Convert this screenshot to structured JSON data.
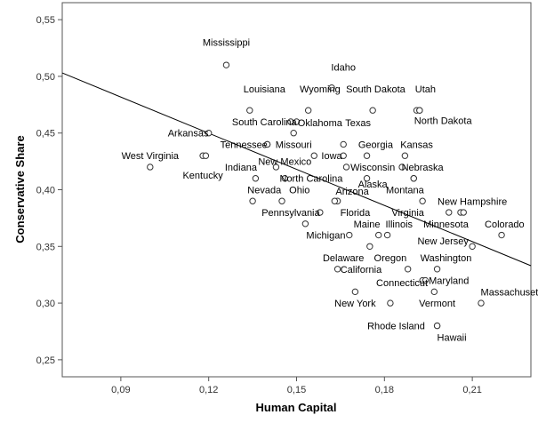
{
  "chart_data": {
    "type": "scatter",
    "xlabel": "Human Capital",
    "ylabel": "Conservative Share",
    "xlim": [
      0.07,
      0.23
    ],
    "ylim": [
      0.235,
      0.565
    ],
    "x_ticks": [
      "0,09",
      "0,12",
      "0,15",
      "0,18",
      "0,21"
    ],
    "x_tick_values": [
      0.09,
      0.12,
      0.15,
      0.18,
      0.21
    ],
    "y_ticks": [
      "0,25",
      "0,30",
      "0,35",
      "0,40",
      "0,45",
      "0,50",
      "0,55"
    ],
    "y_tick_values": [
      0.25,
      0.3,
      0.35,
      0.4,
      0.45,
      0.5,
      0.55
    ],
    "grid": false,
    "fit_line": {
      "x": [
        0.07,
        0.23
      ],
      "y": [
        0.503,
        0.333
      ]
    },
    "points": [
      {
        "label": "Mississippi",
        "x": 0.126,
        "y": 0.51,
        "lx": 0.126,
        "ly": 0.53,
        "anchor": "middle"
      },
      {
        "label": "Idaho",
        "x": 0.162,
        "y": 0.49,
        "lx": 0.166,
        "ly": 0.508,
        "anchor": "middle"
      },
      {
        "label": "Louisiana",
        "x": 0.134,
        "y": 0.47,
        "lx": 0.139,
        "ly": 0.489,
        "anchor": "middle"
      },
      {
        "label": "Wyoming",
        "x": 0.154,
        "y": 0.47,
        "lx": 0.158,
        "ly": 0.489,
        "anchor": "middle"
      },
      {
        "label": "South Dakota",
        "x": 0.176,
        "y": 0.47,
        "lx": 0.177,
        "ly": 0.489,
        "anchor": "middle"
      },
      {
        "label": "Utah",
        "x": 0.191,
        "y": 0.47,
        "lx": 0.194,
        "ly": 0.489,
        "anchor": "middle"
      },
      {
        "label": "Utah-2",
        "x": 0.192,
        "y": 0.47,
        "lx": null,
        "ly": null,
        "anchor": "middle"
      },
      {
        "label": "South Carolina",
        "x": 0.148,
        "y": 0.46,
        "lx": 0.139,
        "ly": 0.46,
        "anchor": "middle"
      },
      {
        "label": "Oklahoma",
        "x": 0.15,
        "y": 0.46,
        "lx": 0.158,
        "ly": 0.459,
        "anchor": "middle"
      },
      {
        "label": "North Dakota",
        "x": 0.192,
        "y": 0.47,
        "lx": 0.2,
        "ly": 0.461,
        "anchor": "middle"
      },
      {
        "label": "Texas",
        "x": 0.149,
        "y": 0.45,
        "lx": 0.171,
        "ly": 0.459,
        "anchor": "middle"
      },
      {
        "label": "Arkansas",
        "x": 0.12,
        "y": 0.45,
        "lx": 0.113,
        "ly": 0.45,
        "anchor": "middle"
      },
      {
        "label": "Tennessee",
        "x": 0.14,
        "y": 0.44,
        "lx": 0.132,
        "ly": 0.44,
        "anchor": "middle"
      },
      {
        "label": "Missouri",
        "x": 0.14,
        "y": 0.44,
        "lx": 0.149,
        "ly": 0.44,
        "anchor": "middle"
      },
      {
        "label": "Georgia",
        "x": 0.166,
        "y": 0.44,
        "lx": 0.177,
        "ly": 0.44,
        "anchor": "middle"
      },
      {
        "label": "Kansas",
        "x": 0.187,
        "y": 0.43,
        "lx": 0.191,
        "ly": 0.44,
        "anchor": "middle"
      },
      {
        "label": "West Virginia",
        "x": 0.1,
        "y": 0.42,
        "lx": 0.1,
        "ly": 0.43,
        "anchor": "middle"
      },
      {
        "label": "West Virginia-dot",
        "x": 0.118,
        "y": 0.43,
        "lx": null,
        "ly": null,
        "anchor": "middle"
      },
      {
        "label": "Iowa",
        "x": 0.156,
        "y": 0.43,
        "lx": 0.162,
        "ly": 0.43,
        "anchor": "middle"
      },
      {
        "label": "Iowa-2",
        "x": 0.166,
        "y": 0.43,
        "lx": null,
        "ly": null,
        "anchor": "middle"
      },
      {
        "label": "Iowa-3",
        "x": 0.174,
        "y": 0.43,
        "lx": null,
        "ly": null,
        "anchor": "middle"
      },
      {
        "label": "New Mexico",
        "x": 0.143,
        "y": 0.42,
        "lx": 0.146,
        "ly": 0.425,
        "anchor": "middle"
      },
      {
        "label": "Indiana",
        "x": 0.136,
        "y": 0.41,
        "lx": 0.131,
        "ly": 0.42,
        "anchor": "middle"
      },
      {
        "label": "Wisconsin",
        "x": 0.167,
        "y": 0.42,
        "lx": 0.176,
        "ly": 0.42,
        "anchor": "middle"
      },
      {
        "label": "Nebraska",
        "x": 0.186,
        "y": 0.42,
        "lx": 0.193,
        "ly": 0.42,
        "anchor": "middle"
      },
      {
        "label": "Kentucky",
        "x": 0.119,
        "y": 0.43,
        "lx": 0.118,
        "ly": 0.413,
        "anchor": "middle"
      },
      {
        "label": "North Carolina",
        "x": 0.146,
        "y": 0.41,
        "lx": 0.155,
        "ly": 0.41,
        "anchor": "middle"
      },
      {
        "label": "Alaska",
        "x": 0.174,
        "y": 0.41,
        "lx": 0.176,
        "ly": 0.405,
        "anchor": "middle"
      },
      {
        "label": "Alaska-2",
        "x": 0.19,
        "y": 0.41,
        "lx": null,
        "ly": null,
        "anchor": "middle"
      },
      {
        "label": "Nevada",
        "x": 0.135,
        "y": 0.39,
        "lx": 0.139,
        "ly": 0.4,
        "anchor": "middle"
      },
      {
        "label": "Ohio",
        "x": 0.145,
        "y": 0.39,
        "lx": 0.151,
        "ly": 0.4,
        "anchor": "middle"
      },
      {
        "label": "Arizona",
        "x": 0.164,
        "y": 0.39,
        "lx": 0.169,
        "ly": 0.399,
        "anchor": "middle"
      },
      {
        "label": "Montana",
        "x": 0.19,
        "y": 0.41,
        "lx": 0.187,
        "ly": 0.4,
        "anchor": "middle"
      },
      {
        "label": "New Hampshire",
        "x": 0.206,
        "y": 0.38,
        "lx": 0.21,
        "ly": 0.39,
        "anchor": "middle"
      },
      {
        "label": "New Hampshire-2",
        "x": 0.207,
        "y": 0.38,
        "lx": null,
        "ly": null,
        "anchor": "middle"
      },
      {
        "label": "Florida",
        "x": 0.163,
        "y": 0.39,
        "lx": 0.17,
        "ly": 0.38,
        "anchor": "middle"
      },
      {
        "label": "Virginia",
        "x": 0.193,
        "y": 0.39,
        "lx": 0.188,
        "ly": 0.38,
        "anchor": "middle"
      },
      {
        "label": "Pennsylvania",
        "x": 0.158,
        "y": 0.38,
        "lx": 0.148,
        "ly": 0.38,
        "anchor": "middle"
      },
      {
        "label": "Pennsylvania-2",
        "x": 0.153,
        "y": 0.37,
        "lx": null,
        "ly": null,
        "anchor": "middle"
      },
      {
        "label": "Minnesota",
        "x": 0.202,
        "y": 0.38,
        "lx": 0.201,
        "ly": 0.37,
        "anchor": "middle"
      },
      {
        "label": "Maine",
        "x": 0.178,
        "y": 0.36,
        "lx": 0.174,
        "ly": 0.37,
        "anchor": "middle"
      },
      {
        "label": "Illinois",
        "x": 0.181,
        "y": 0.36,
        "lx": 0.185,
        "ly": 0.37,
        "anchor": "middle"
      },
      {
        "label": "Colorado",
        "x": 0.22,
        "y": 0.36,
        "lx": 0.221,
        "ly": 0.37,
        "anchor": "middle"
      },
      {
        "label": "Michigan",
        "x": 0.168,
        "y": 0.36,
        "lx": 0.16,
        "ly": 0.36,
        "anchor": "middle"
      },
      {
        "label": "New Jersey",
        "x": 0.21,
        "y": 0.35,
        "lx": 0.2,
        "ly": 0.355,
        "anchor": "middle"
      },
      {
        "label": "Delaware",
        "x": 0.175,
        "y": 0.35,
        "lx": 0.166,
        "ly": 0.34,
        "anchor": "middle"
      },
      {
        "label": "Oregon",
        "x": 0.188,
        "y": 0.33,
        "lx": 0.182,
        "ly": 0.34,
        "anchor": "middle"
      },
      {
        "label": "Washington",
        "x": 0.198,
        "y": 0.33,
        "lx": 0.201,
        "ly": 0.34,
        "anchor": "middle"
      },
      {
        "label": "California",
        "x": 0.164,
        "y": 0.33,
        "lx": 0.172,
        "ly": 0.33,
        "anchor": "middle"
      },
      {
        "label": "Maryland",
        "x": 0.193,
        "y": 0.32,
        "lx": 0.202,
        "ly": 0.32,
        "anchor": "middle"
      },
      {
        "label": "Connecticut",
        "x": 0.194,
        "y": 0.32,
        "lx": 0.186,
        "ly": 0.318,
        "anchor": "middle"
      },
      {
        "label": "Massachusetts",
        "x": 0.213,
        "y": 0.3,
        "lx": 0.224,
        "ly": 0.31,
        "anchor": "middle"
      },
      {
        "label": "New York",
        "x": 0.17,
        "y": 0.31,
        "lx": 0.17,
        "ly": 0.3,
        "anchor": "middle"
      },
      {
        "label": "New York-2",
        "x": 0.182,
        "y": 0.3,
        "lx": null,
        "ly": null,
        "anchor": "middle"
      },
      {
        "label": "Vermont",
        "x": 0.197,
        "y": 0.31,
        "lx": 0.198,
        "ly": 0.3,
        "anchor": "middle"
      },
      {
        "label": "Rhode Island",
        "x": 0.198,
        "y": 0.28,
        "lx": 0.184,
        "ly": 0.28,
        "anchor": "middle"
      },
      {
        "label": "Hawaii",
        "x": 0.198,
        "y": 0.28,
        "lx": 0.203,
        "ly": 0.27,
        "anchor": "middle"
      }
    ]
  }
}
